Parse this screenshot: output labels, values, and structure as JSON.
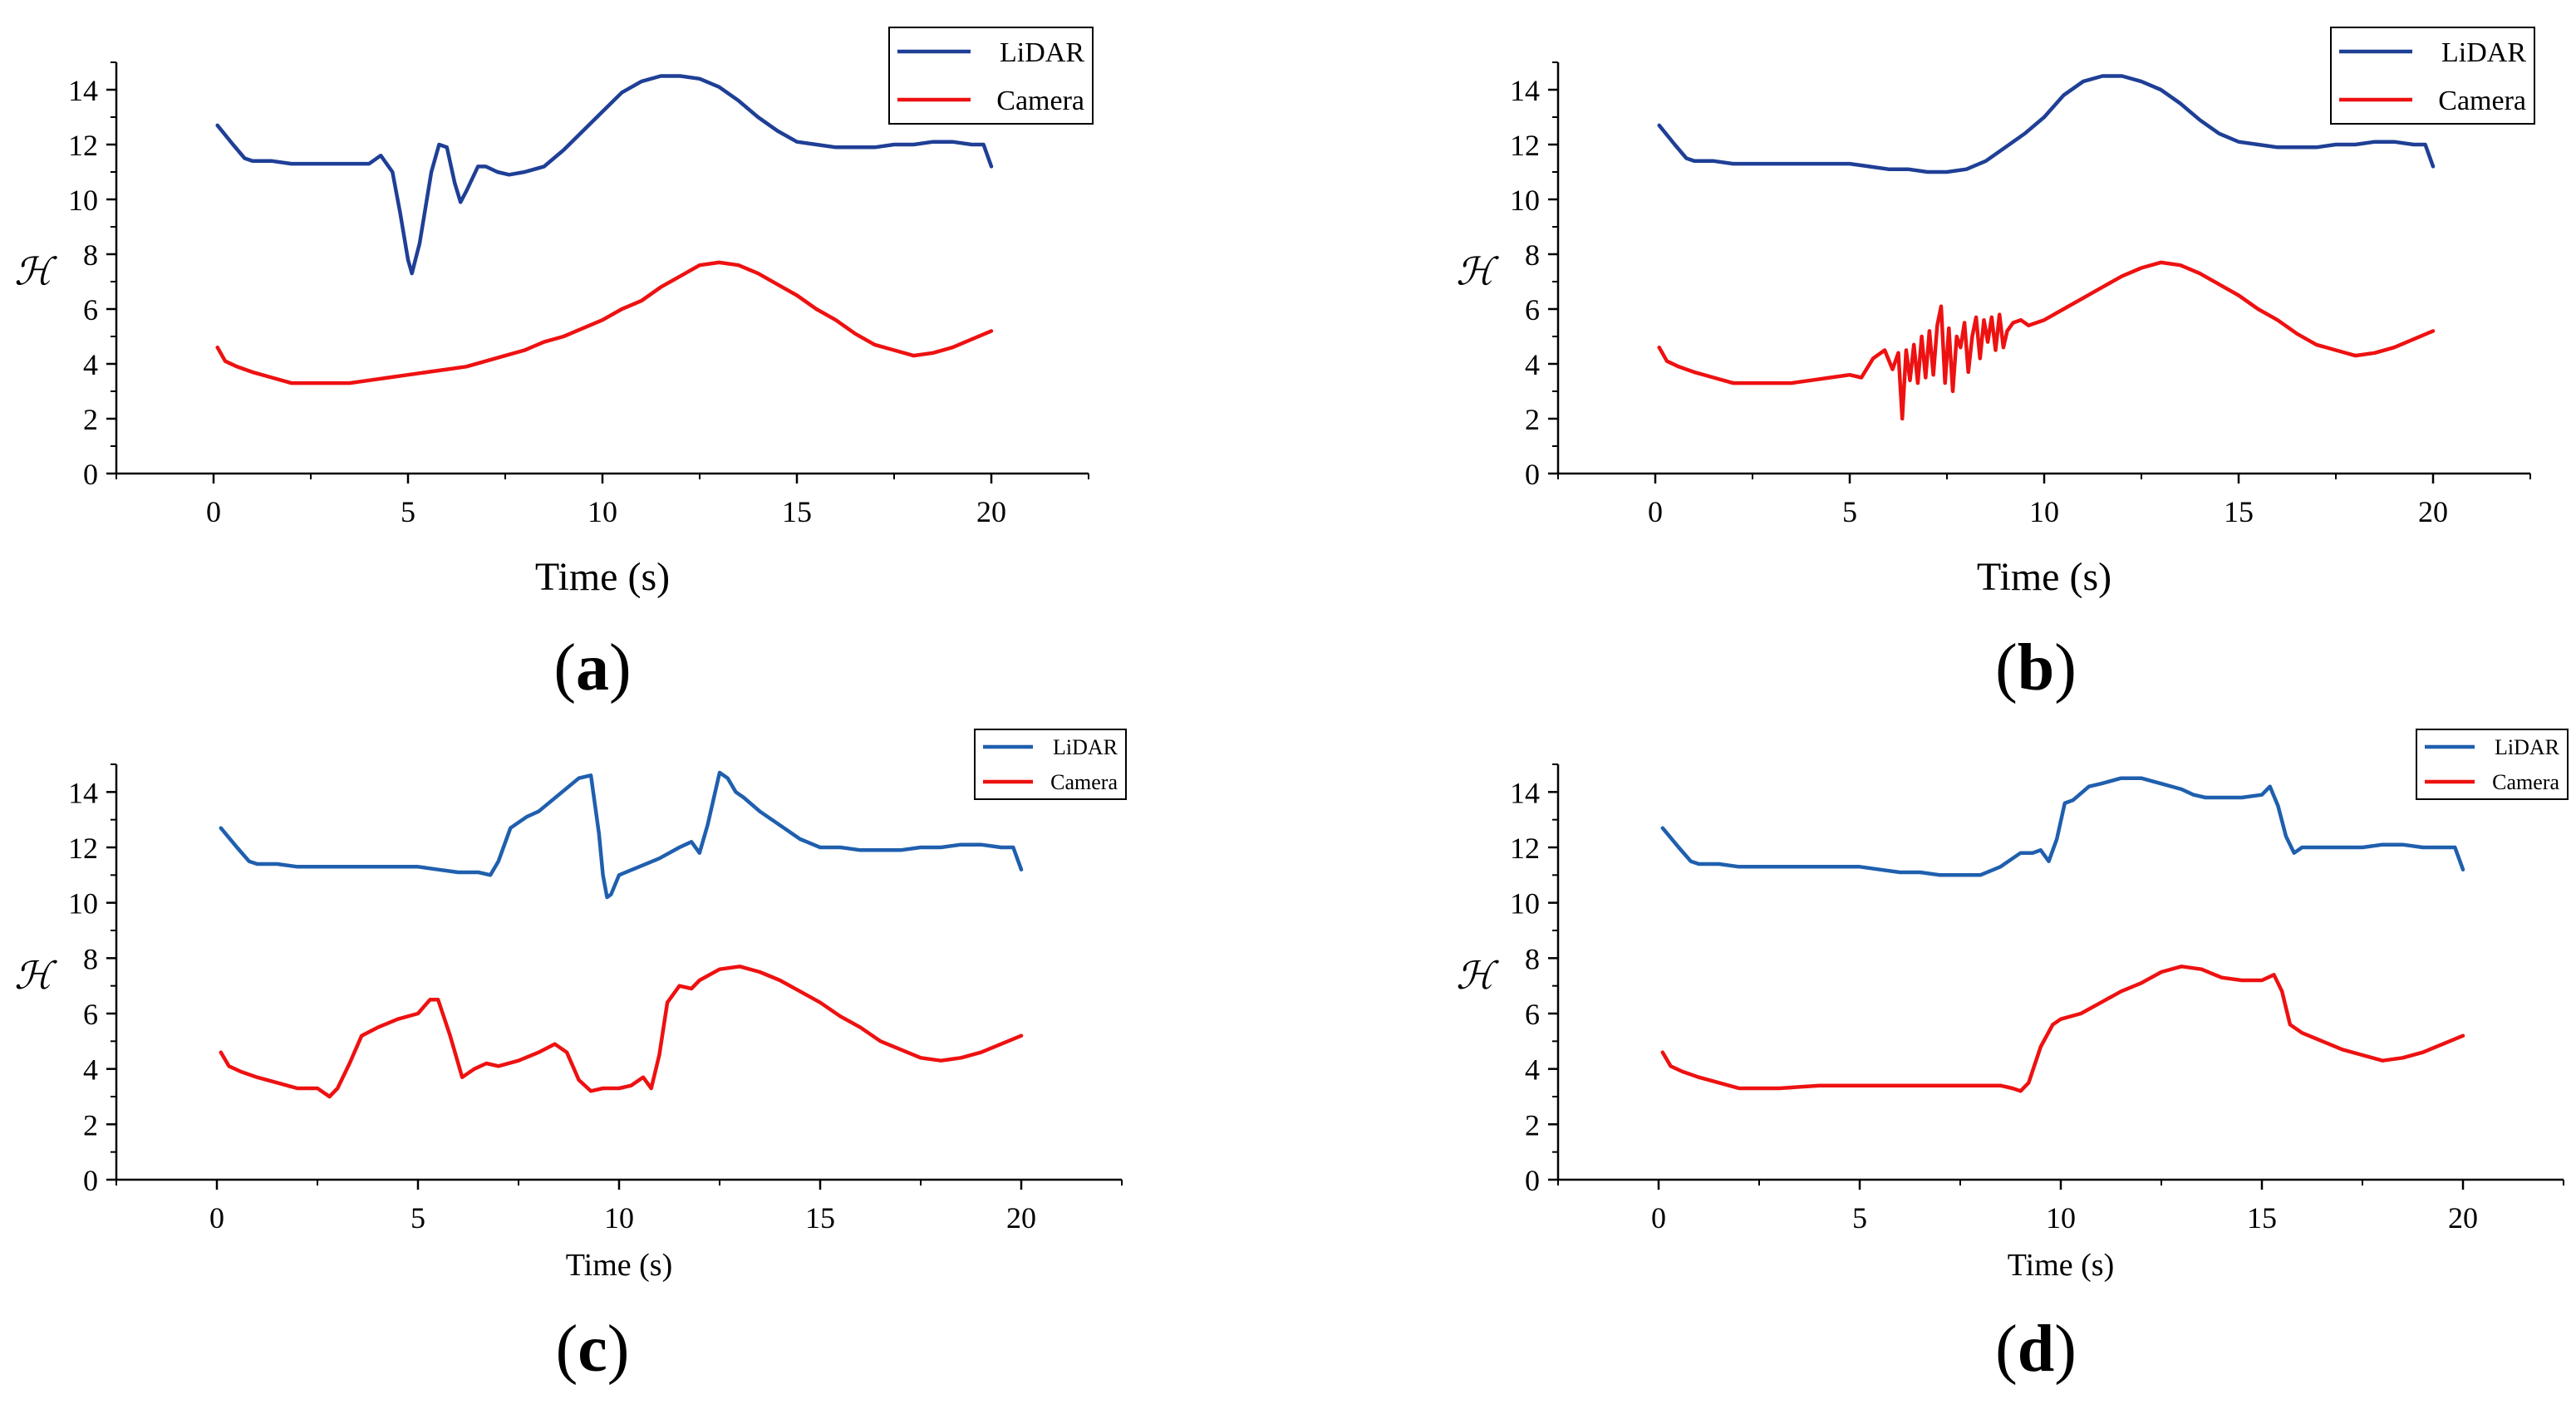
{
  "colors": {
    "lidar_a": "#1f3f96",
    "lidar_c": "#1f5fae",
    "camera": "#ee1111",
    "axis": "#000000"
  },
  "chart_data": [
    {
      "type": "line",
      "panel_label": "a",
      "xlabel": "Time (s)",
      "ylabel": "ℋ",
      "xlim": [
        -2.5,
        22.5
      ],
      "ylim": [
        0,
        15
      ],
      "xticks": [
        "0",
        "5",
        "10",
        "15",
        "20"
      ],
      "yticks": [
        "0",
        "2",
        "4",
        "6",
        "8",
        "10",
        "12",
        "14"
      ],
      "legend": [
        "LiDAR",
        "Camera"
      ],
      "legend_position": "top-right",
      "series": [
        {
          "name": "LiDAR",
          "color_key": "lidar_a",
          "x": [
            0.1,
            0.5,
            0.8,
            1,
            1.5,
            2,
            3,
            3.5,
            4,
            4.3,
            4.6,
            4.8,
            5.0,
            5.1,
            5.3,
            5.6,
            5.8,
            6.0,
            6.2,
            6.35,
            6.5,
            6.8,
            7.0,
            7.3,
            7.6,
            8,
            8.5,
            9,
            9.5,
            10,
            10.5,
            11,
            11.5,
            12,
            12.5,
            13,
            13.5,
            14,
            14.5,
            15,
            15.5,
            16,
            16.5,
            17,
            17.5,
            18,
            18.5,
            19,
            19.5,
            19.8,
            20.0
          ],
          "y": [
            12.7,
            12.0,
            11.5,
            11.4,
            11.4,
            11.3,
            11.3,
            11.3,
            11.3,
            11.6,
            11.0,
            9.5,
            7.8,
            7.3,
            8.4,
            11.0,
            12.0,
            11.9,
            10.6,
            9.9,
            10.3,
            11.2,
            11.2,
            11.0,
            10.9,
            11.0,
            11.2,
            11.8,
            12.5,
            13.2,
            13.9,
            14.3,
            14.5,
            14.5,
            14.4,
            14.1,
            13.6,
            13.0,
            12.5,
            12.1,
            12.0,
            11.9,
            11.9,
            11.9,
            12.0,
            12.0,
            12.1,
            12.1,
            12.0,
            12.0,
            11.2
          ]
        },
        {
          "name": "Camera",
          "color_key": "camera",
          "x": [
            0.1,
            0.3,
            0.6,
            1,
            1.5,
            2,
            2.5,
            3,
            3.5,
            4,
            4.5,
            5,
            5.5,
            6,
            6.5,
            7,
            7.5,
            8,
            8.5,
            9,
            9.5,
            10,
            10.5,
            11,
            11.5,
            12,
            12.5,
            13,
            13.5,
            14,
            14.5,
            15,
            15.5,
            16,
            16.5,
            17,
            17.5,
            18,
            18.5,
            19,
            19.5,
            20
          ],
          "y": [
            4.6,
            4.1,
            3.9,
            3.7,
            3.5,
            3.3,
            3.3,
            3.3,
            3.3,
            3.4,
            3.5,
            3.6,
            3.7,
            3.8,
            3.9,
            4.1,
            4.3,
            4.5,
            4.8,
            5.0,
            5.3,
            5.6,
            6.0,
            6.3,
            6.8,
            7.2,
            7.6,
            7.7,
            7.6,
            7.3,
            6.9,
            6.5,
            6.0,
            5.6,
            5.1,
            4.7,
            4.5,
            4.3,
            4.4,
            4.6,
            4.9,
            5.2
          ]
        }
      ]
    },
    {
      "type": "line",
      "panel_label": "b",
      "xlabel": "Time (s)",
      "ylabel": "ℋ",
      "xlim": [
        -2.5,
        22.5
      ],
      "ylim": [
        0,
        15
      ],
      "xticks": [
        "0",
        "5",
        "10",
        "15",
        "20"
      ],
      "yticks": [
        "0",
        "2",
        "4",
        "6",
        "8",
        "10",
        "12",
        "14"
      ],
      "legend": [
        "LiDAR",
        "Camera"
      ],
      "legend_position": "top-right",
      "series": [
        {
          "name": "LiDAR",
          "color_key": "lidar_a",
          "x": [
            0.1,
            0.5,
            0.8,
            1,
            1.5,
            2,
            3,
            4,
            5,
            5.5,
            6,
            6.5,
            7,
            7.5,
            8,
            8.5,
            9,
            9.5,
            10,
            10.5,
            11,
            11.5,
            12,
            12.5,
            13,
            13.5,
            14,
            14.5,
            15,
            15.5,
            16,
            16.5,
            17,
            17.5,
            18,
            18.5,
            19,
            19.5,
            19.8,
            20.0
          ],
          "y": [
            12.7,
            12.0,
            11.5,
            11.4,
            11.4,
            11.3,
            11.3,
            11.3,
            11.3,
            11.2,
            11.1,
            11.1,
            11.0,
            11.0,
            11.1,
            11.4,
            11.9,
            12.4,
            13.0,
            13.8,
            14.3,
            14.5,
            14.5,
            14.3,
            14.0,
            13.5,
            12.9,
            12.4,
            12.1,
            12.0,
            11.9,
            11.9,
            11.9,
            12.0,
            12.0,
            12.1,
            12.1,
            12.0,
            12.0,
            11.2
          ]
        },
        {
          "name": "Camera",
          "color_key": "camera",
          "x": [
            0.1,
            0.3,
            0.6,
            1,
            1.5,
            2,
            2.5,
            3,
            3.5,
            4,
            4.5,
            5,
            5.3,
            5.6,
            5.9,
            6.1,
            6.25,
            6.35,
            6.45,
            6.55,
            6.65,
            6.75,
            6.85,
            6.95,
            7.05,
            7.15,
            7.25,
            7.35,
            7.45,
            7.55,
            7.65,
            7.75,
            7.85,
            7.95,
            8.05,
            8.15,
            8.25,
            8.35,
            8.45,
            8.55,
            8.65,
            8.75,
            8.85,
            8.95,
            9.05,
            9.2,
            9.4,
            9.6,
            9.8,
            10,
            10.5,
            11,
            11.5,
            12,
            12.5,
            13,
            13.5,
            14,
            14.5,
            15,
            15.5,
            16,
            16.5,
            17,
            17.5,
            18,
            18.5,
            19,
            19.5,
            20
          ],
          "y": [
            4.6,
            4.1,
            3.9,
            3.7,
            3.5,
            3.3,
            3.3,
            3.3,
            3.3,
            3.4,
            3.5,
            3.6,
            3.5,
            4.2,
            4.5,
            3.8,
            4.4,
            2.0,
            4.5,
            3.4,
            4.7,
            3.3,
            5.0,
            3.5,
            5.2,
            3.6,
            5.4,
            6.1,
            3.3,
            5.3,
            3.0,
            5.0,
            4.6,
            5.5,
            3.7,
            5.0,
            5.7,
            4.2,
            5.6,
            4.8,
            5.7,
            4.5,
            5.8,
            4.6,
            5.2,
            5.5,
            5.6,
            5.4,
            5.5,
            5.6,
            6.0,
            6.4,
            6.8,
            7.2,
            7.5,
            7.7,
            7.6,
            7.3,
            6.9,
            6.5,
            6.0,
            5.6,
            5.1,
            4.7,
            4.5,
            4.3,
            4.4,
            4.6,
            4.9,
            5.2
          ]
        }
      ]
    },
    {
      "type": "line",
      "panel_label": "c",
      "xlabel": "Time (s)",
      "ylabel": "ℋ",
      "xlim": [
        -2.5,
        22.5
      ],
      "ylim": [
        0,
        15
      ],
      "xticks": [
        "0",
        "5",
        "10",
        "15",
        "20"
      ],
      "yticks": [
        "0",
        "2",
        "4",
        "6",
        "8",
        "10",
        "12",
        "14"
      ],
      "legend": [
        "LiDAR",
        "Camera"
      ],
      "legend_position": "top-right",
      "series": [
        {
          "name": "LiDAR",
          "color_key": "lidar_c",
          "x": [
            0.1,
            0.5,
            0.8,
            1,
            1.5,
            2,
            3,
            4,
            5,
            5.5,
            6,
            6.5,
            6.8,
            7.0,
            7.3,
            7.7,
            8,
            8.5,
            9,
            9.3,
            9.5,
            9.6,
            9.7,
            9.8,
            10,
            10.5,
            11,
            11.5,
            11.8,
            12.0,
            12.2,
            12.5,
            12.7,
            12.9,
            13.1,
            13.5,
            14,
            14.5,
            15,
            15.5,
            16,
            16.5,
            17,
            17.5,
            18,
            18.5,
            19,
            19.5,
            19.8,
            20.0
          ],
          "y": [
            12.7,
            12.0,
            11.5,
            11.4,
            11.4,
            11.3,
            11.3,
            11.3,
            11.3,
            11.2,
            11.1,
            11.1,
            11.0,
            11.5,
            12.7,
            13.1,
            13.3,
            13.9,
            14.5,
            14.6,
            12.5,
            11.0,
            10.2,
            10.3,
            11.0,
            11.3,
            11.6,
            12.0,
            12.2,
            11.8,
            12.8,
            14.7,
            14.5,
            14.0,
            13.8,
            13.3,
            12.8,
            12.3,
            12.0,
            12.0,
            11.9,
            11.9,
            11.9,
            12.0,
            12.0,
            12.1,
            12.1,
            12.0,
            12.0,
            11.2
          ]
        },
        {
          "name": "Camera",
          "color_key": "camera",
          "x": [
            0.1,
            0.3,
            0.6,
            1,
            1.5,
            2,
            2.5,
            2.8,
            3.0,
            3.3,
            3.6,
            4,
            4.5,
            5,
            5.3,
            5.5,
            5.8,
            6.1,
            6.4,
            6.7,
            7,
            7.5,
            8,
            8.4,
            8.7,
            9,
            9.3,
            9.6,
            10,
            10.3,
            10.6,
            10.8,
            11.0,
            11.2,
            11.5,
            11.8,
            12,
            12.5,
            13,
            13.5,
            14,
            14.5,
            15,
            15.5,
            16,
            16.5,
            17,
            17.5,
            18,
            18.5,
            19,
            19.5,
            20
          ],
          "y": [
            4.6,
            4.1,
            3.9,
            3.7,
            3.5,
            3.3,
            3.3,
            3.0,
            3.3,
            4.2,
            5.2,
            5.5,
            5.8,
            6.0,
            6.5,
            6.5,
            5.2,
            3.7,
            4.0,
            4.2,
            4.1,
            4.3,
            4.6,
            4.9,
            4.6,
            3.6,
            3.2,
            3.3,
            3.3,
            3.4,
            3.7,
            3.3,
            4.5,
            6.4,
            7.0,
            6.9,
            7.2,
            7.6,
            7.7,
            7.5,
            7.2,
            6.8,
            6.4,
            5.9,
            5.5,
            5.0,
            4.7,
            4.4,
            4.3,
            4.4,
            4.6,
            4.9,
            5.2
          ]
        }
      ]
    },
    {
      "type": "line",
      "panel_label": "d",
      "xlabel": "Time (s)",
      "ylabel": "ℋ",
      "xlim": [
        -2.5,
        22.5
      ],
      "ylim": [
        0,
        15
      ],
      "xticks": [
        "0",
        "5",
        "10",
        "15",
        "20"
      ],
      "yticks": [
        "0",
        "2",
        "4",
        "6",
        "8",
        "10",
        "12",
        "14"
      ],
      "legend": [
        "LiDAR",
        "Camera"
      ],
      "legend_position": "top-right",
      "series": [
        {
          "name": "LiDAR",
          "color_key": "lidar_c",
          "x": [
            0.1,
            0.5,
            0.8,
            1,
            1.5,
            2,
            3,
            4,
            5,
            5.5,
            6,
            6.5,
            7,
            7.5,
            8,
            8.5,
            9,
            9.3,
            9.5,
            9.7,
            9.9,
            10.1,
            10.3,
            10.7,
            11,
            11.5,
            12,
            12.5,
            13,
            13.3,
            13.6,
            14,
            14.5,
            15,
            15.2,
            15.4,
            15.6,
            15.8,
            16,
            16.5,
            17,
            17.5,
            18,
            18.5,
            19,
            19.5,
            19.8,
            20.0
          ],
          "y": [
            12.7,
            12.0,
            11.5,
            11.4,
            11.4,
            11.3,
            11.3,
            11.3,
            11.3,
            11.2,
            11.1,
            11.1,
            11.0,
            11.0,
            11.0,
            11.3,
            11.8,
            11.8,
            11.9,
            11.5,
            12.3,
            13.6,
            13.7,
            14.2,
            14.3,
            14.5,
            14.5,
            14.3,
            14.1,
            13.9,
            13.8,
            13.8,
            13.8,
            13.9,
            14.2,
            13.5,
            12.4,
            11.8,
            12.0,
            12.0,
            12.0,
            12.0,
            12.1,
            12.1,
            12.0,
            12.0,
            12.0,
            11.2
          ]
        },
        {
          "name": "Camera",
          "color_key": "camera",
          "x": [
            0.1,
            0.3,
            0.6,
            1,
            1.5,
            2,
            2.5,
            3,
            4,
            5,
            6,
            7,
            8,
            8.5,
            8.8,
            9.0,
            9.2,
            9.5,
            9.8,
            10,
            10.5,
            11,
            11.5,
            12,
            12.5,
            13,
            13.5,
            14,
            14.5,
            15,
            15.3,
            15.5,
            15.7,
            16,
            16.5,
            17,
            17.5,
            18,
            18.5,
            19,
            19.5,
            20
          ],
          "y": [
            4.6,
            4.1,
            3.9,
            3.7,
            3.5,
            3.3,
            3.3,
            3.3,
            3.4,
            3.4,
            3.4,
            3.4,
            3.4,
            3.4,
            3.3,
            3.2,
            3.5,
            4.8,
            5.6,
            5.8,
            6.0,
            6.4,
            6.8,
            7.1,
            7.5,
            7.7,
            7.6,
            7.3,
            7.2,
            7.2,
            7.4,
            6.8,
            5.6,
            5.3,
            5.0,
            4.7,
            4.5,
            4.3,
            4.4,
            4.6,
            4.9,
            5.2
          ]
        }
      ]
    }
  ]
}
